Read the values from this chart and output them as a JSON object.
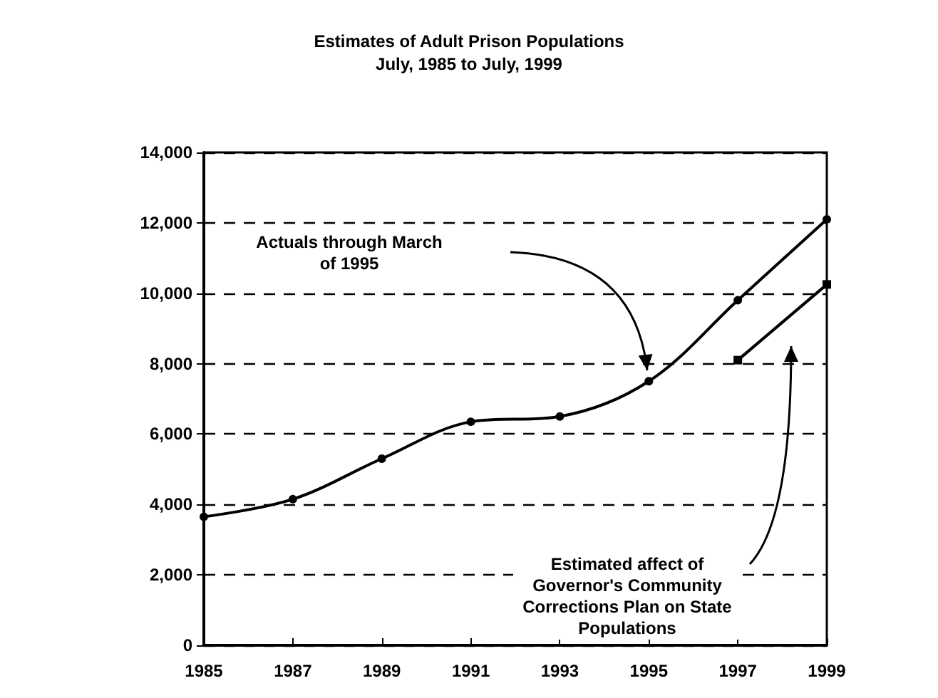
{
  "chart_data": {
    "type": "line",
    "title": "Estimates of Adult Prison Populations",
    "subtitle": "July, 1985 to July, 1999",
    "series": [
      {
        "color": "#000000",
        "marker": "circle",
        "x": [
          1985,
          1987,
          1989,
          1991,
          1993,
          1995,
          1997,
          1999
        ],
        "values": [
          3650,
          4150,
          5300,
          6350,
          6500,
          7500,
          9800,
          12100
        ]
      },
      {
        "color": "#000000",
        "marker": "square",
        "x": [
          1997,
          1999
        ],
        "values": [
          8100,
          10250
        ]
      }
    ],
    "xlim": [
      1985,
      1999
    ],
    "xticks": [
      1985,
      1987,
      1989,
      1991,
      1993,
      1995,
      1997,
      1999
    ],
    "ylim": [
      0,
      14000
    ],
    "yticks": [
      0,
      {
        "value": 2000,
        "label": "2,000"
      },
      {
        "value": 4000,
        "label": "4,000"
      },
      {
        "value": 6000,
        "label": "6,000"
      },
      {
        "value": 8000,
        "label": "8,000"
      },
      {
        "value": 10000,
        "label": "10,000"
      },
      {
        "value": 12000,
        "label": "12,000"
      },
      {
        "value": 14000,
        "label": "14,000"
      }
    ],
    "grid": "y",
    "annotations": [
      "Actuals through March of 1995",
      "Estimated affect of Governor's Community Corrections Plan on State Populations"
    ]
  }
}
